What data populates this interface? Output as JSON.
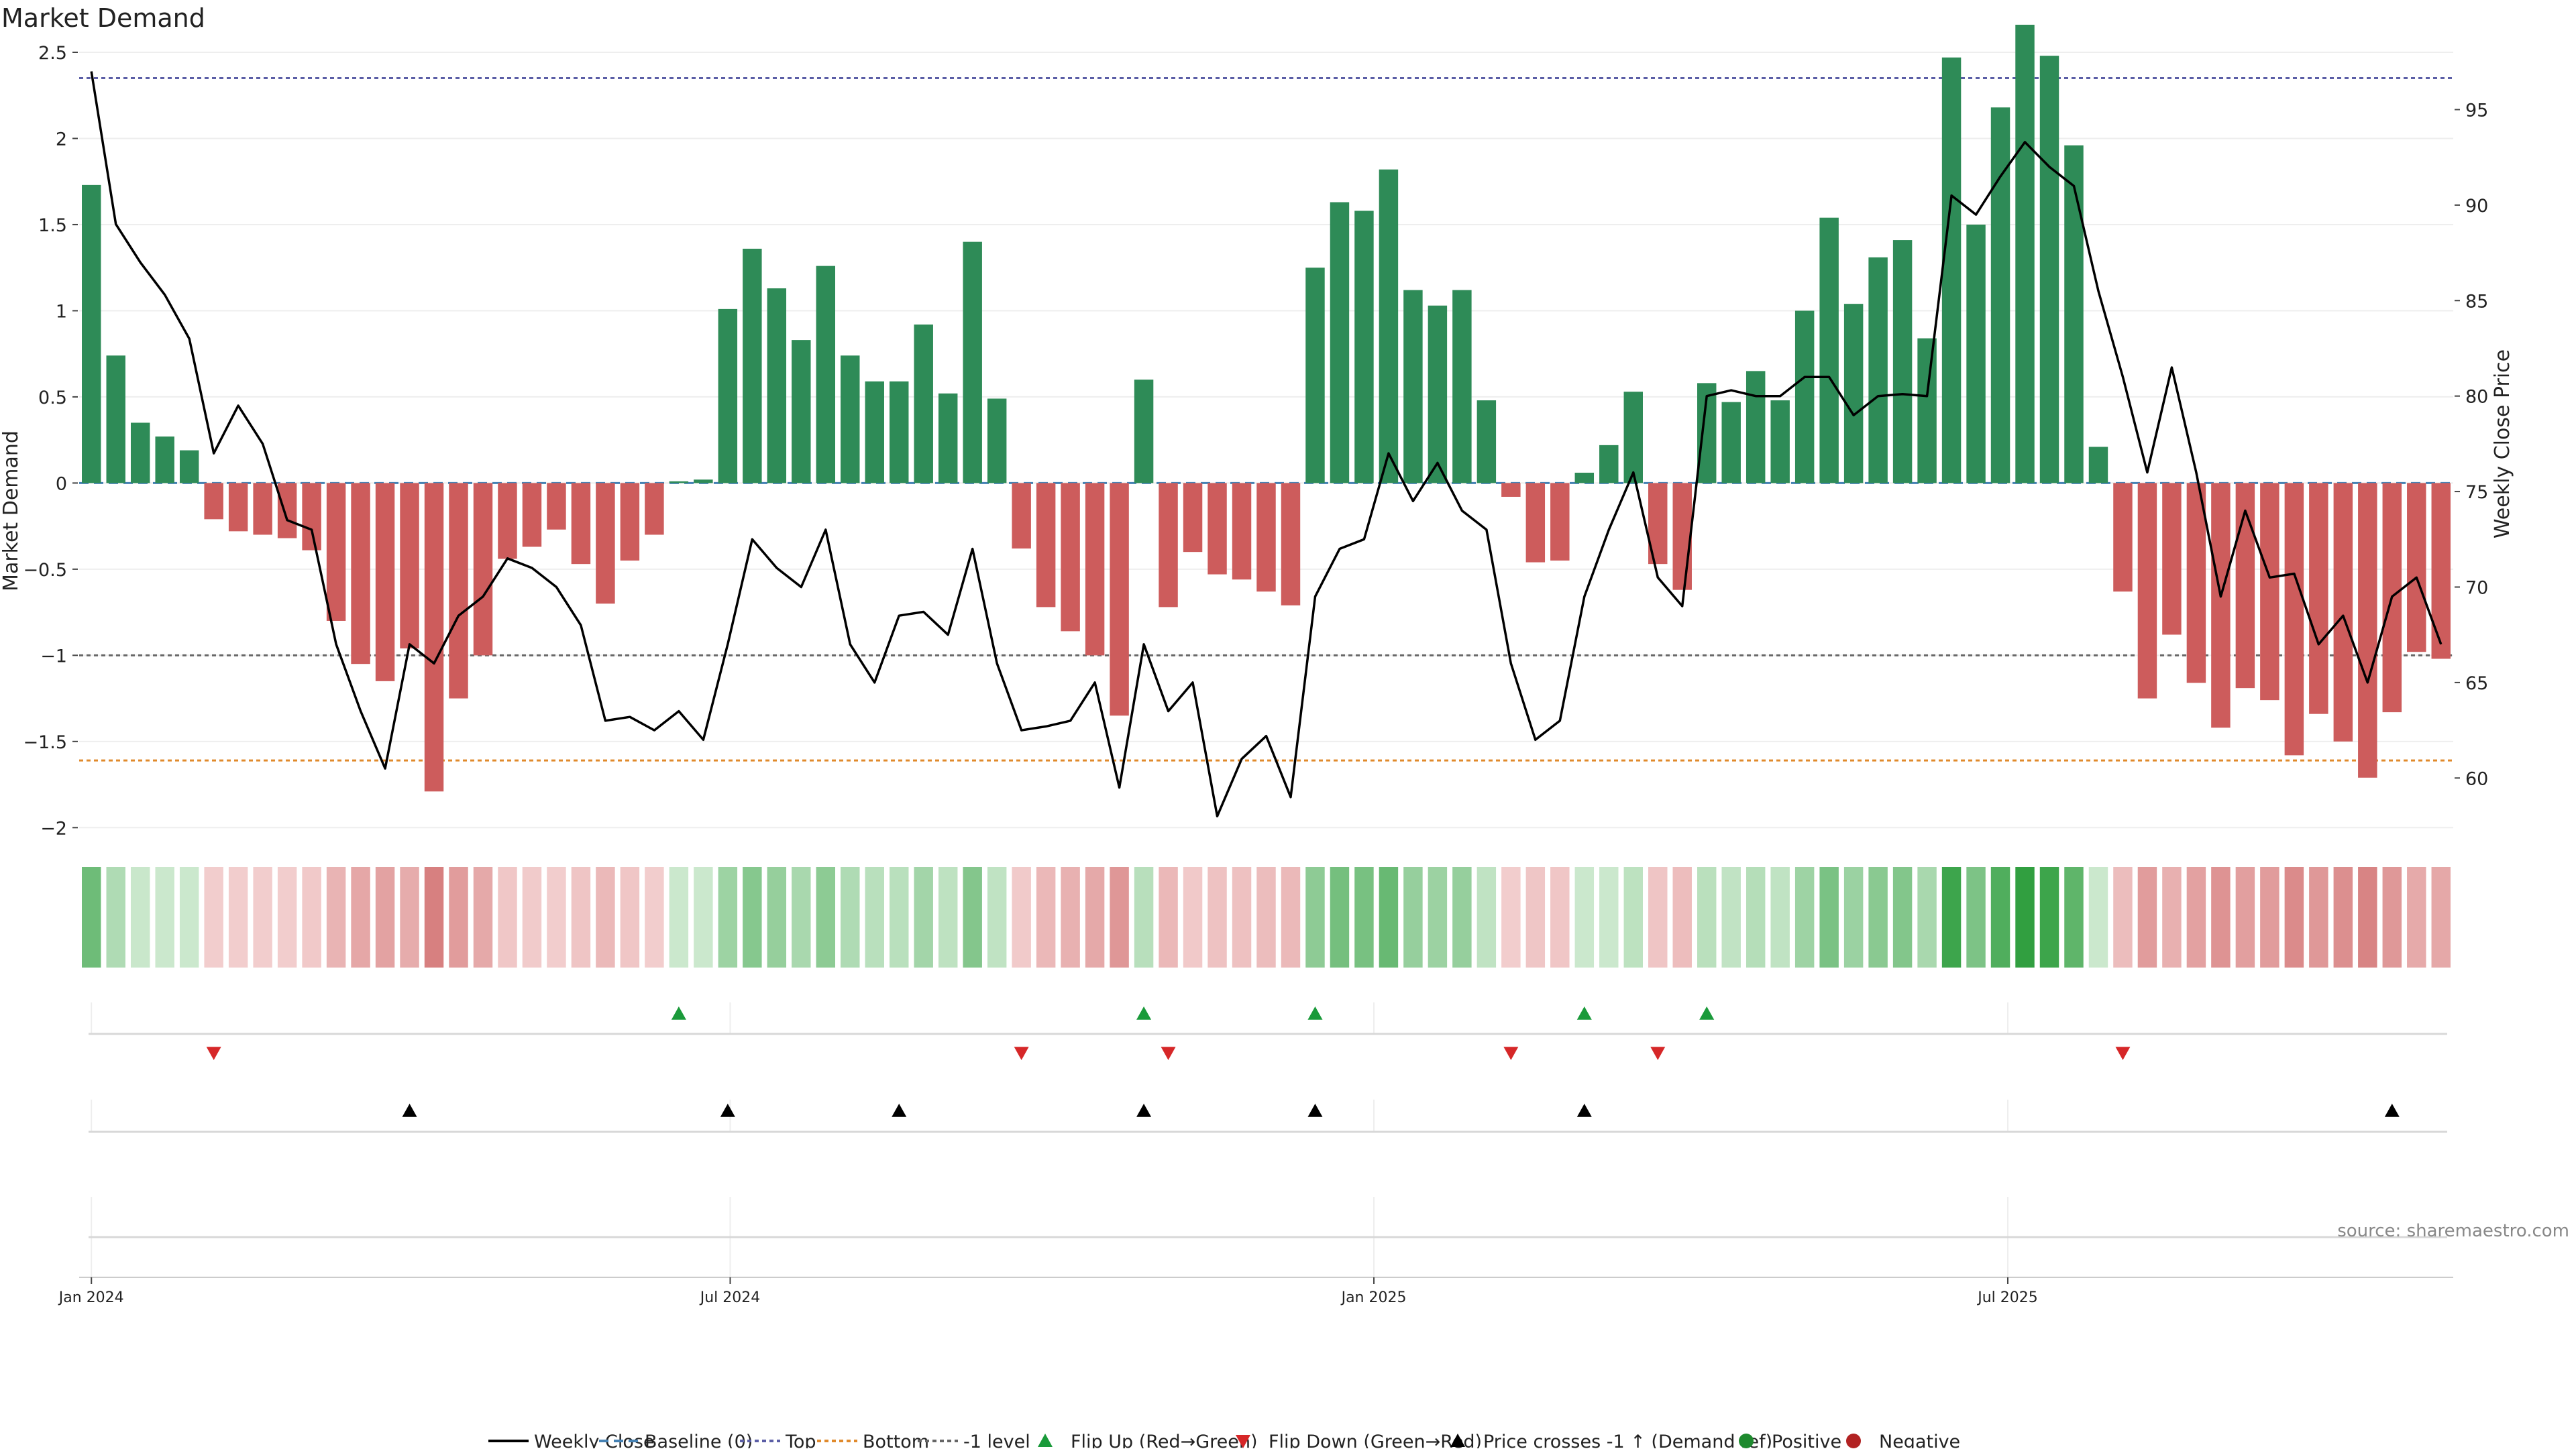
{
  "title": "Market Demand",
  "source": "source: sharemaestro.com",
  "colors": {
    "positive": "#2e8b57",
    "negative": "#cd5c5c",
    "price": "#000000",
    "baseline": "#4682b4",
    "top": "#5b5ea6",
    "bottom": "#e08a2c",
    "minus1": "#666666",
    "flip_up": "#1a9a3a",
    "flip_down": "#d62728",
    "cross": "#000000",
    "pos_dot": "#1e8a2e",
    "neg_dot": "#b22222"
  },
  "chart_data": {
    "type": "bar",
    "title": "Market Demand",
    "ylabel": "Market Demand",
    "y2label": "Weekly Close Price",
    "ylim": [
      -2.1,
      2.5
    ],
    "y_ticks": [
      -2,
      -1.5,
      -1,
      -0.5,
      0,
      0.5,
      1,
      1.5,
      2,
      2.5
    ],
    "y_tick_labels": [
      "−2",
      "−1.5",
      "−1",
      "−0.5",
      "0",
      "0.5",
      "1",
      "1.5",
      "2",
      "2.5"
    ],
    "y2lim": [
      56.5,
      98
    ],
    "y2_ticks": [
      60,
      65,
      70,
      75,
      80,
      85,
      90,
      95
    ],
    "y2_tick_labels": [
      "60",
      "65",
      "70",
      "75",
      "80",
      "85",
      "90",
      "95"
    ],
    "x_ticks": [
      0,
      26.1,
      52.4,
      78.3
    ],
    "x_tick_labels": [
      "Jan 2024",
      "Jul 2024",
      "Jan 2025",
      "Jul 2025"
    ],
    "reference_lines": {
      "top": 2.35,
      "bottom": -1.61,
      "minus1": -1.0,
      "baseline": 0
    },
    "demand": [
      1.73,
      0.74,
      0.35,
      0.27,
      0.19,
      -0.21,
      -0.28,
      -0.3,
      -0.32,
      -0.39,
      -0.8,
      -1.05,
      -1.15,
      -0.96,
      -1.79,
      -1.25,
      -1.0,
      -0.44,
      -0.37,
      -0.27,
      -0.47,
      -0.7,
      -0.45,
      -0.3,
      0.01,
      0.02,
      1.01,
      1.36,
      1.13,
      0.83,
      1.26,
      0.74,
      0.59,
      0.59,
      0.92,
      0.52,
      1.4,
      0.49,
      -0.38,
      -0.72,
      -0.86,
      -1.0,
      -1.35,
      0.6,
      -0.72,
      -0.4,
      -0.53,
      -0.56,
      -0.63,
      -0.71,
      1.25,
      1.63,
      1.58,
      1.82,
      1.12,
      1.03,
      1.12,
      0.48,
      -0.08,
      -0.46,
      -0.45,
      0.06,
      0.22,
      0.53,
      -0.47,
      -0.62,
      0.58,
      0.47,
      0.65,
      0.48,
      1.0,
      1.54,
      1.04,
      1.31,
      1.41,
      0.84,
      2.47,
      1.5,
      2.18,
      2.66,
      2.48,
      1.96,
      0.21,
      -0.63,
      -1.25,
      -0.88,
      -1.16,
      -1.42,
      -1.19,
      -1.26,
      -1.58,
      -1.34,
      -1.5,
      -1.71,
      -1.33,
      -0.98,
      -1.02
    ],
    "price": [
      97,
      89,
      87,
      85.3,
      83,
      77,
      79.5,
      77.5,
      73.5,
      73,
      67,
      63.5,
      60.5,
      67,
      66,
      68.5,
      69.5,
      71.5,
      71,
      70,
      68,
      63,
      63.2,
      62.5,
      63.5,
      62,
      67,
      72.5,
      71,
      70,
      73,
      67,
      65,
      68.5,
      68.7,
      67.5,
      72,
      66,
      62.5,
      62.7,
      63,
      65,
      59.5,
      67,
      63.5,
      65,
      58,
      61,
      62.2,
      59,
      69.5,
      72,
      72.5,
      77,
      74.5,
      76.5,
      74,
      73,
      66,
      62,
      63,
      69.5,
      73,
      76,
      70.5,
      69,
      80,
      80.3,
      80,
      80,
      81,
      81,
      79,
      80,
      80.1,
      80,
      90.5,
      89.5,
      91.5,
      93.3,
      92,
      91,
      85.5,
      81,
      76,
      81.5,
      76,
      69.5,
      74,
      70.5,
      70.7,
      67,
      68.5,
      65,
      69.5,
      70.5,
      67
    ],
    "flip_up_weeks": [
      24,
      43,
      50,
      61,
      66
    ],
    "flip_down_weeks": [
      5,
      38,
      44,
      58,
      64,
      83
    ],
    "price_cross_weeks": [
      13,
      26,
      33,
      43,
      50,
      61,
      94
    ]
  },
  "legend": {
    "items": [
      {
        "key": "weekly_close",
        "label": "Weekly Close"
      },
      {
        "key": "baseline",
        "label": "Baseline (0)"
      },
      {
        "key": "top",
        "label": "Top"
      },
      {
        "key": "bottom",
        "label": "Bottom"
      },
      {
        "key": "minus1",
        "label": "-1 level"
      },
      {
        "key": "flip_up",
        "label": "Flip Up (Red→Green)"
      },
      {
        "key": "flip_down",
        "label": "Flip Down (Green→Red)"
      },
      {
        "key": "cross",
        "label": "Price crosses -1 ↑ (Demand ref)"
      },
      {
        "key": "positive",
        "label": "Positive"
      },
      {
        "key": "negative",
        "label": "Negative"
      }
    ]
  }
}
